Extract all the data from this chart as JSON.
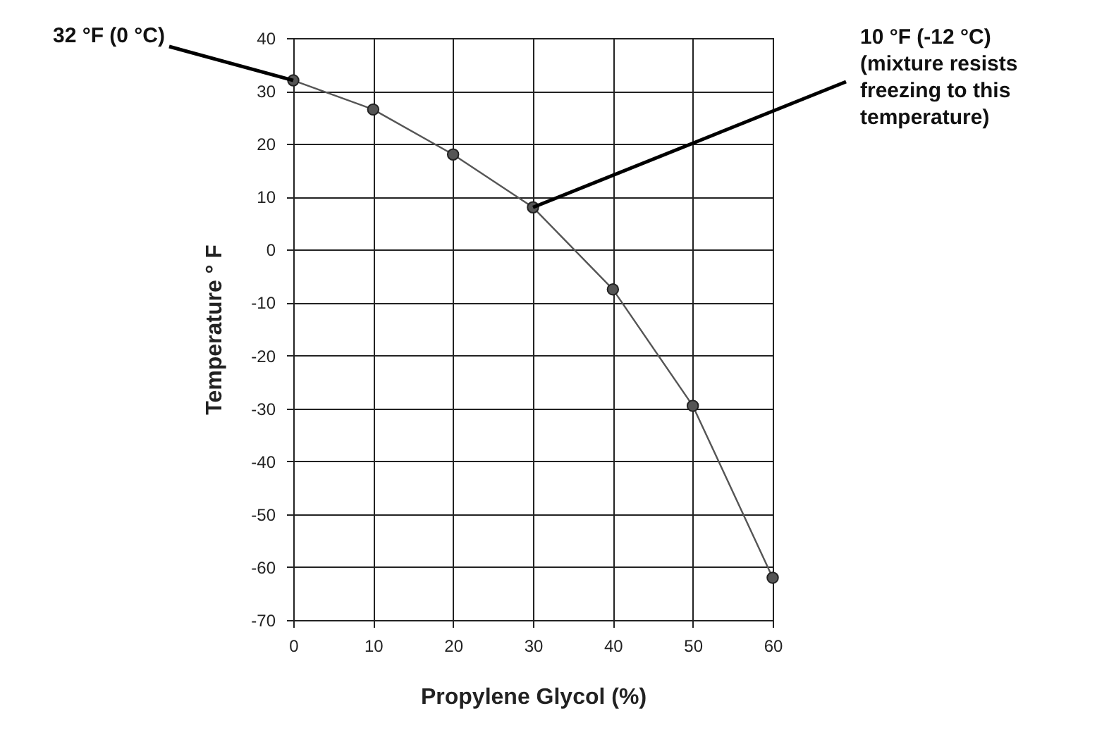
{
  "chart_data": {
    "type": "line",
    "xlabel": "Propylene Glycol (%)",
    "ylabel": "Temperature ° F",
    "x": [
      0,
      10,
      20,
      30,
      40,
      50,
      60
    ],
    "series": [
      {
        "color": "#555555",
        "values": [
          32,
          26.5,
          18,
          8,
          -7.5,
          -29.5,
          -62
        ]
      }
    ],
    "xlim": [
      0,
      60
    ],
    "xticks": [
      0,
      10,
      20,
      30,
      40,
      50,
      60
    ],
    "ylim": [
      -70,
      40
    ],
    "yticks": [
      -70,
      -60,
      -50,
      -40,
      -30,
      -20,
      -10,
      0,
      10,
      20,
      30,
      40
    ],
    "grid": true,
    "marker": "circle",
    "line_style": "solid",
    "annotations": [
      {
        "text": "32 °F (0 °C)",
        "x": 0,
        "y": 32
      },
      {
        "text": "10 °F (-12 °C)\n(mixture resists\nfreezing to this\ntemperature)",
        "x": 30,
        "y": 8
      }
    ]
  }
}
